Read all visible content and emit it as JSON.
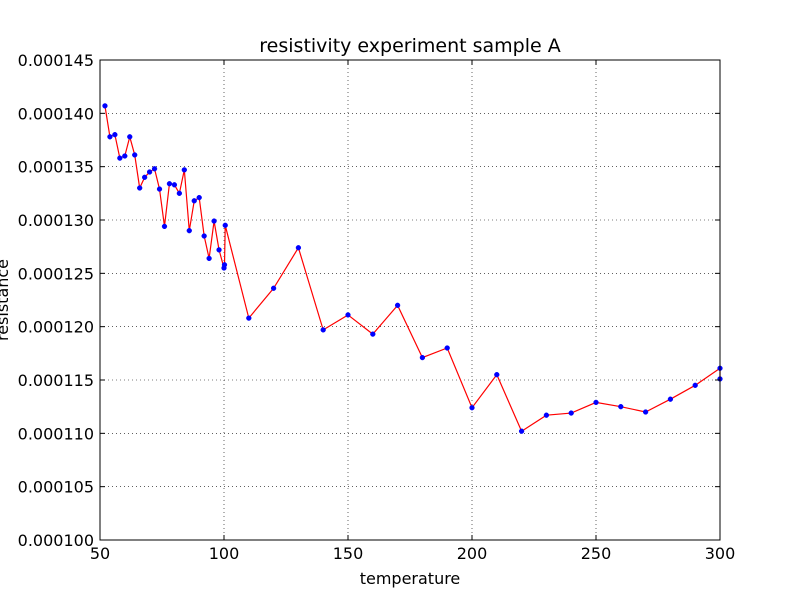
{
  "chart_data": {
    "type": "line",
    "title": "resistivity experiment sample A",
    "xlabel": "temperature",
    "ylabel": "resistance",
    "xlim": [
      50,
      300
    ],
    "ylim": [
      0.0001,
      0.000145
    ],
    "x_ticks": [
      50,
      100,
      150,
      200,
      250,
      300
    ],
    "x_tick_labels": [
      "50",
      "100",
      "150",
      "200",
      "250",
      "300"
    ],
    "y_ticks": [
      0.0001,
      0.000105,
      0.00011,
      0.000115,
      0.00012,
      0.000125,
      0.00013,
      0.000135,
      0.00014,
      0.000145
    ],
    "y_tick_labels": [
      "0.000100",
      "0.000105",
      "0.000110",
      "0.000115",
      "0.000120",
      "0.000125",
      "0.000130",
      "0.000135",
      "0.000140",
      "0.000145"
    ],
    "grid": true,
    "line_color": "#ff0000",
    "marker_color": "#0000ff",
    "series": [
      {
        "x": [
          52,
          54,
          56,
          58,
          60,
          62,
          64,
          66,
          68,
          70,
          72,
          74,
          76,
          78,
          80,
          82,
          84,
          86,
          88,
          90,
          92,
          94,
          96,
          98,
          100,
          100.2,
          100.5,
          110,
          120,
          130,
          140,
          150,
          160,
          170,
          180,
          190,
          200,
          210,
          220,
          230,
          240,
          250,
          260,
          270,
          280,
          290,
          300,
          300
        ],
        "y": [
          0.0001407,
          0.0001378,
          0.000138,
          0.0001358,
          0.000136,
          0.0001378,
          0.0001361,
          0.000133,
          0.000134,
          0.0001345,
          0.0001348,
          0.0001329,
          0.0001294,
          0.0001334,
          0.0001333,
          0.0001325,
          0.0001347,
          0.000129,
          0.0001318,
          0.0001321,
          0.0001285,
          0.0001264,
          0.0001299,
          0.0001272,
          0.0001255,
          0.0001258,
          0.0001295,
          0.0001208,
          0.0001236,
          0.0001274,
          0.0001197,
          0.0001211,
          0.0001193,
          0.000122,
          0.0001171,
          0.000118,
          0.0001124,
          0.0001155,
          0.0001102,
          0.0001117,
          0.0001119,
          0.0001129,
          0.0001125,
          0.000112,
          0.0001132,
          0.0001145,
          0.0001161,
          0.0001151
        ]
      }
    ]
  }
}
